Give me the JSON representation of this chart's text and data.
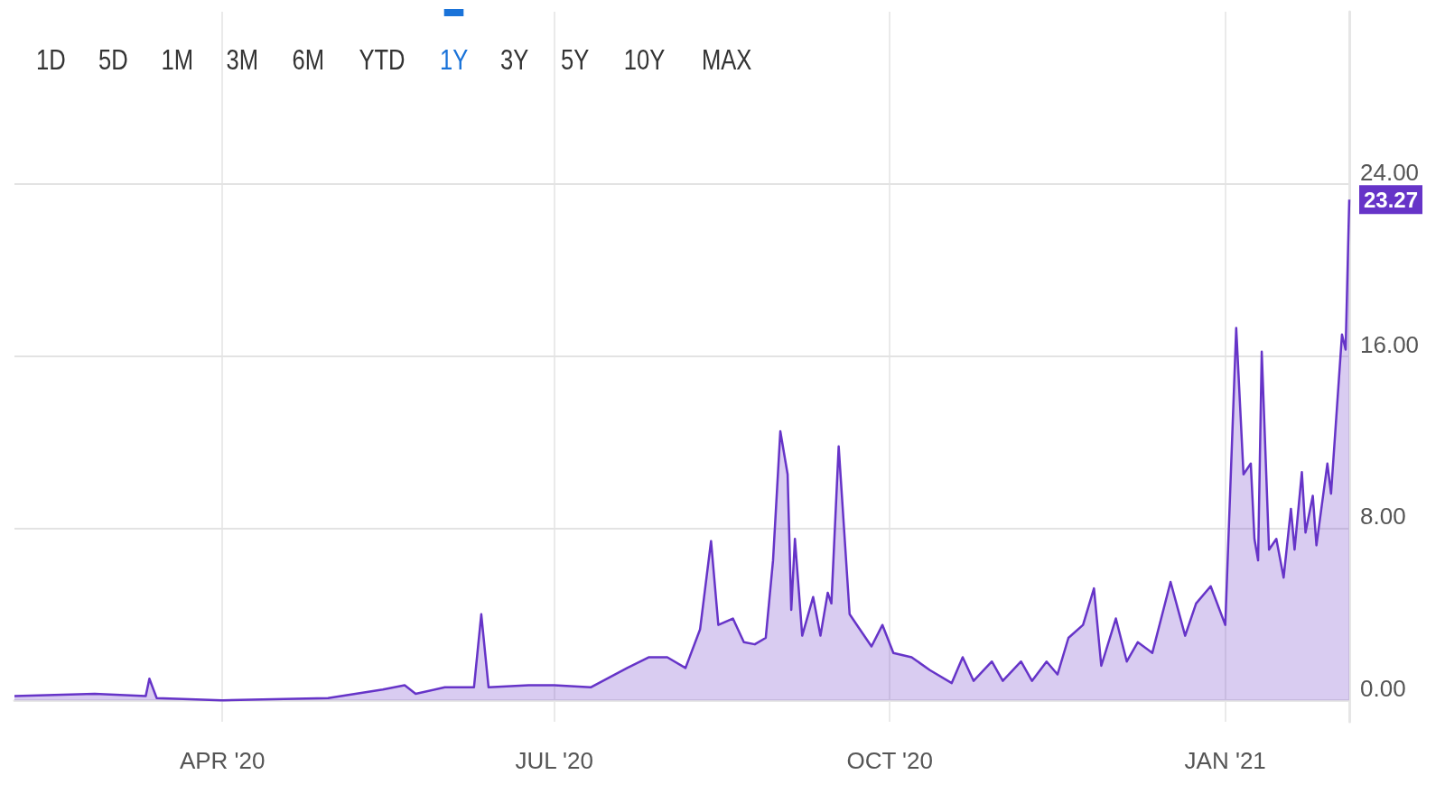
{
  "chart_data": {
    "type": "area",
    "color": "#6634c8",
    "x": [
      "2020-02-04",
      "2020-02-26",
      "2020-03-11",
      "2020-03-12",
      "2020-03-14",
      "2020-04-01",
      "2020-04-30",
      "2020-05-15",
      "2020-05-21",
      "2020-05-24",
      "2020-06-01",
      "2020-06-09",
      "2020-06-11",
      "2020-06-13",
      "2020-06-24",
      "2020-07-01",
      "2020-07-11",
      "2020-07-21",
      "2020-07-27",
      "2020-08-01",
      "2020-08-06",
      "2020-08-10",
      "2020-08-13",
      "2020-08-15",
      "2020-08-19",
      "2020-08-22",
      "2020-08-25",
      "2020-08-28",
      "2020-08-30",
      "2020-09-01",
      "2020-09-03",
      "2020-09-04",
      "2020-09-05",
      "2020-09-07",
      "2020-09-10",
      "2020-09-12",
      "2020-09-14",
      "2020-09-15",
      "2020-09-17",
      "2020-09-20",
      "2020-09-22",
      "2020-09-26",
      "2020-09-29",
      "2020-10-02",
      "2020-10-07",
      "2020-10-12",
      "2020-10-18",
      "2020-10-21",
      "2020-10-24",
      "2020-10-29",
      "2020-11-01",
      "2020-11-06",
      "2020-11-09",
      "2020-11-13",
      "2020-11-16",
      "2020-11-19",
      "2020-11-23",
      "2020-11-26",
      "2020-11-28",
      "2020-12-02",
      "2020-12-05",
      "2020-12-08",
      "2020-12-12",
      "2020-12-17",
      "2020-12-21",
      "2020-12-24",
      "2020-12-28",
      "2021-01-01",
      "2021-01-04",
      "2021-01-06",
      "2021-01-08",
      "2021-01-09",
      "2021-01-10",
      "2021-01-11",
      "2021-01-13",
      "2021-01-15",
      "2021-01-17",
      "2021-01-19",
      "2021-01-20",
      "2021-01-22",
      "2021-01-23",
      "2021-01-25",
      "2021-01-26",
      "2021-01-29",
      "2021-01-30",
      "2021-02-02",
      "2021-02-03",
      "2021-02-04"
    ],
    "values": [
      0.2,
      0.3,
      0.2,
      1.0,
      0.1,
      0.0,
      0.1,
      0.5,
      0.7,
      0.3,
      0.6,
      0.6,
      4.0,
      0.6,
      0.7,
      0.7,
      0.6,
      1.5,
      2.0,
      2.0,
      1.5,
      3.3,
      7.4,
      3.5,
      3.8,
      2.7,
      2.6,
      2.9,
      6.5,
      12.5,
      10.5,
      4.2,
      7.5,
      3.0,
      4.8,
      3.0,
      5.0,
      4.5,
      11.8,
      4.0,
      3.5,
      2.5,
      3.5,
      2.2,
      2.0,
      1.4,
      0.8,
      2.0,
      0.9,
      1.8,
      0.9,
      1.8,
      0.9,
      1.8,
      1.2,
      2.9,
      3.5,
      5.2,
      1.6,
      3.8,
      1.8,
      2.7,
      2.2,
      5.5,
      3.0,
      4.5,
      5.3,
      3.5,
      17.3,
      10.5,
      11.0,
      7.5,
      6.5,
      16.2,
      7.0,
      7.5,
      5.7,
      8.9,
      7.0,
      10.6,
      7.8,
      9.5,
      7.2,
      11.0,
      9.6,
      17.0,
      16.3,
      23.27
    ],
    "xlim": [
      "2020-02-04",
      "2021-02-04"
    ],
    "xticks": [
      {
        "value": "2020-04-01",
        "label": "APR '20"
      },
      {
        "value": "2020-07-01",
        "label": "JUL '20"
      },
      {
        "value": "2020-10-01",
        "label": "OCT '20"
      },
      {
        "value": "2021-01-01",
        "label": "JAN '21"
      }
    ],
    "ylim": [
      -1,
      32
    ],
    "yticks": [
      {
        "value": 0,
        "label": "0.00"
      },
      {
        "value": 8,
        "label": "8.00"
      },
      {
        "value": 16,
        "label": "16.00"
      },
      {
        "value": 24,
        "label": "24.00"
      }
    ],
    "grid": true,
    "marker": "none",
    "annotations": [
      "1D",
      "5D",
      "1M",
      "3M",
      "6M",
      "YTD",
      "1Y",
      "3Y",
      "5Y",
      "10Y",
      "MAX",
      {
        "text": "23.27",
        "x": "2021-02-04",
        "y": 23.27
      }
    ]
  }
}
